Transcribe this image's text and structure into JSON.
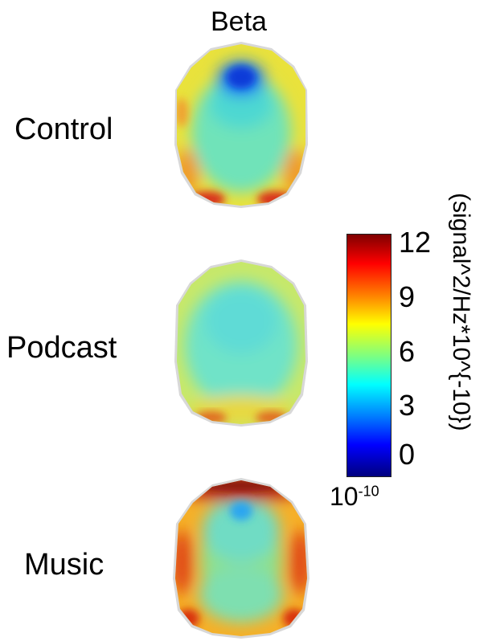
{
  "figure": {
    "column_title": "Beta",
    "rows": [
      {
        "label": "Control",
        "key": "control"
      },
      {
        "label": "Podcast",
        "key": "podcast"
      },
      {
        "label": "Music",
        "key": "music"
      }
    ]
  },
  "colorbar": {
    "ticks": [
      "12",
      "9",
      "6",
      "3",
      "0"
    ],
    "unit_base": "10",
    "unit_exp": "-10",
    "axis_label": "(signal^2/Hz*10^{-10})",
    "colors": [
      "#00007f",
      "#0000ff",
      "#007fff",
      "#00ffff",
      "#7fff7f",
      "#ffff00",
      "#ff7f00",
      "#ff0000",
      "#7f0000"
    ]
  }
}
